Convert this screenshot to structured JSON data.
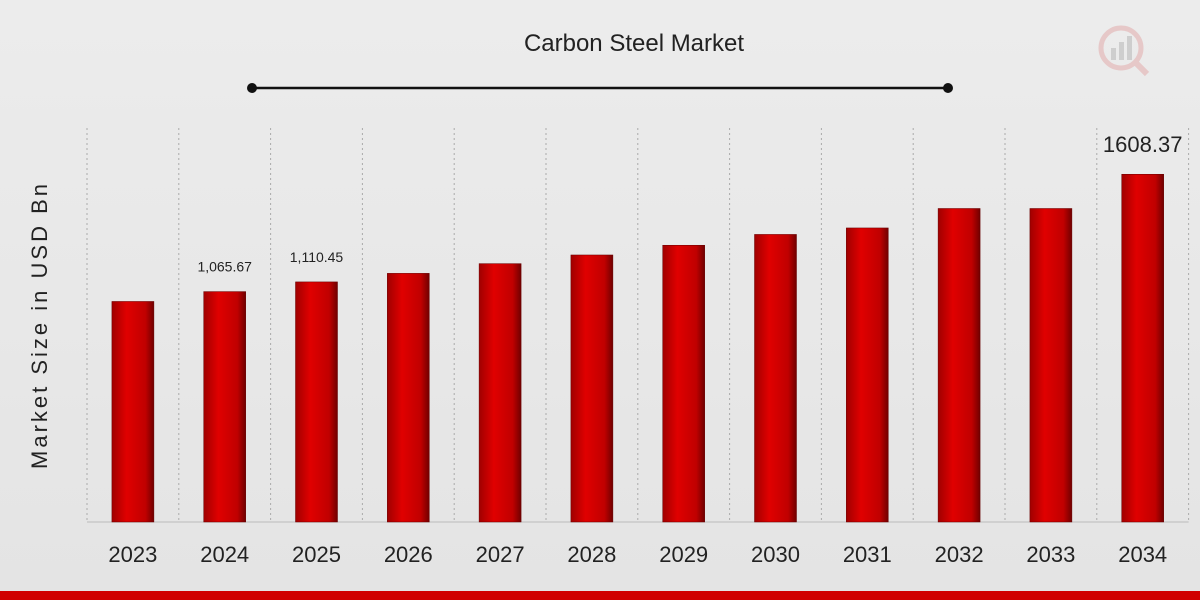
{
  "chart_data": {
    "type": "bar",
    "title": "Carbon Steel Market",
    "ylabel": "Market Size in USD Bn",
    "xlabel": "",
    "categories": [
      "2023",
      "2024",
      "2025",
      "2026",
      "2027",
      "2028",
      "2029",
      "2030",
      "2031",
      "2032",
      "2033",
      "2034"
    ],
    "values": [
      1020,
      1065.67,
      1110.45,
      1150,
      1195,
      1235,
      1280,
      1330,
      1360,
      1450,
      1450,
      1608.37
    ],
    "data_labels": {
      "1": "1,065.67",
      "2": "1,110.45",
      "11": "1608.37"
    },
    "ylim": [
      0,
      1850
    ],
    "grid": "vertical dotted",
    "bar_color": "#cc0000",
    "accent_color": "#d00000"
  }
}
